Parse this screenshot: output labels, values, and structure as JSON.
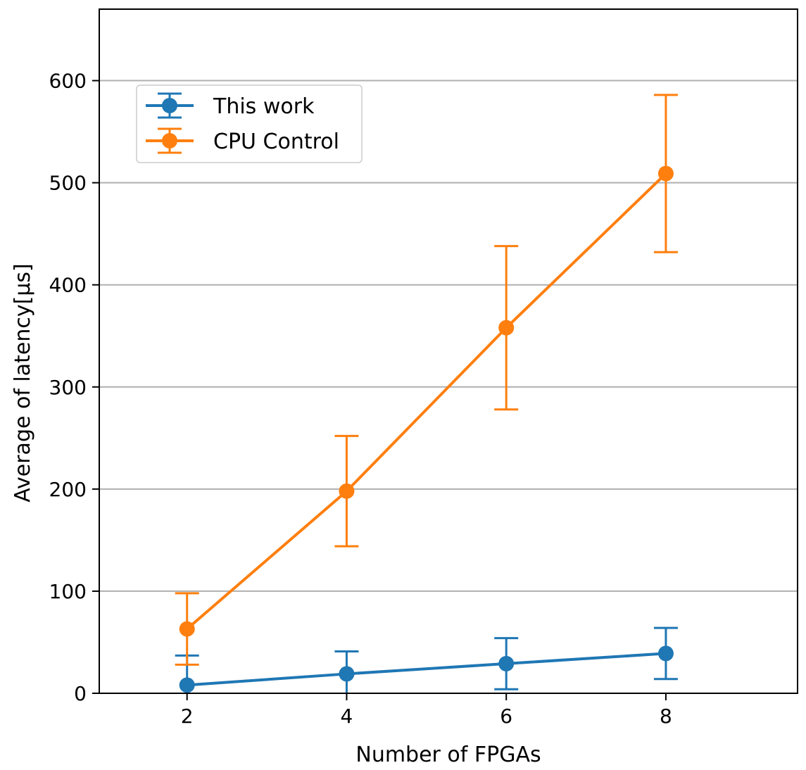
{
  "chart_data": {
    "type": "line",
    "xlabel": "Number of FPGAs",
    "ylabel": "Average of latency[µs]",
    "xlim": [
      0.9,
      9.65
    ],
    "ylim": [
      0,
      670
    ],
    "x_ticks": [
      2,
      4,
      6,
      8
    ],
    "y_ticks": [
      0,
      100,
      200,
      300,
      400,
      500,
      600
    ],
    "grid": "horizontal",
    "legend_position": "top-left",
    "series": [
      {
        "name": "This work",
        "color": "#1f77b4",
        "x": [
          2,
          4,
          6,
          8
        ],
        "y": [
          8,
          19,
          29,
          39
        ],
        "err": [
          29,
          22,
          25,
          25
        ]
      },
      {
        "name": "CPU Control",
        "color": "#ff7f0e",
        "x": [
          2,
          4,
          6,
          8
        ],
        "y": [
          63,
          198,
          358,
          509
        ],
        "err": [
          35,
          54,
          80,
          77
        ]
      }
    ]
  }
}
